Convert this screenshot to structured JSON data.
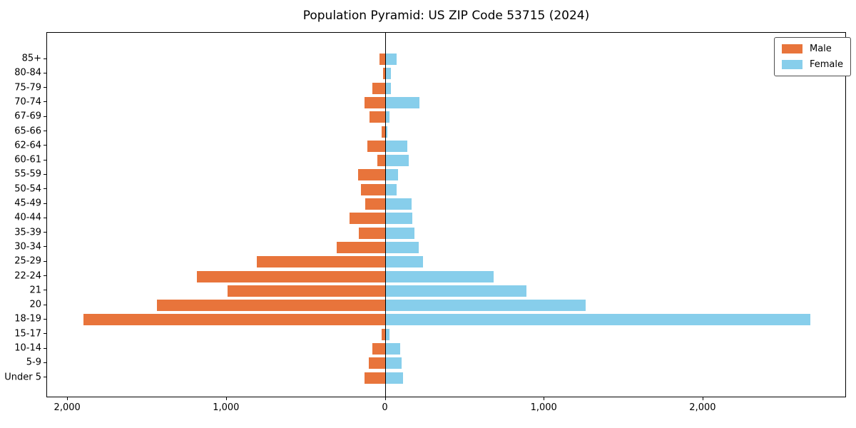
{
  "title": "Population Pyramid: US ZIP Code 53715 (2024)",
  "legend": {
    "items": [
      {
        "label": "Male",
        "color": "#E8743B"
      },
      {
        "label": "Female",
        "color": "#87CEEB"
      }
    ]
  },
  "colors": {
    "male": "#E8743B",
    "female": "#87CEEB",
    "axis": "#000000",
    "background": "#ffffff"
  },
  "x_axis": {
    "tick_values": [
      -2000,
      -1000,
      0,
      1000,
      2000
    ],
    "tick_labels": [
      "2,000",
      "1,000",
      "0",
      "1,000",
      "2,000"
    ]
  },
  "chart_data": {
    "type": "bar",
    "subtype": "population-pyramid-horizontal",
    "title": "Population Pyramid: US ZIP Code 53715 (2024)",
    "xlabel": "",
    "ylabel": "",
    "grid": false,
    "legend_position": "upper right",
    "xlim": [
      -2131,
      2903
    ],
    "categories_top_to_bottom": [
      "85+",
      "80-84",
      "75-79",
      "70-74",
      "67-69",
      "65-66",
      "62-64",
      "60-61",
      "55-59",
      "50-54",
      "45-49",
      "40-44",
      "35-39",
      "30-34",
      "25-29",
      "22-24",
      "21",
      "20",
      "18-19",
      "15-17",
      "10-14",
      "5-9",
      "Under 5"
    ],
    "series": [
      {
        "name": "Male",
        "side": "left",
        "color": "#E8743B",
        "values": [
          38,
          18,
          82,
          132,
          100,
          25,
          115,
          52,
          172,
          154,
          126,
          225,
          168,
          307,
          812,
          1190,
          993,
          1438,
          1902,
          27,
          85,
          105,
          132
        ]
      },
      {
        "name": "Female",
        "side": "right",
        "color": "#87CEEB",
        "values": [
          70,
          34,
          34,
          213,
          26,
          13,
          139,
          145,
          79,
          70,
          166,
          170,
          180,
          210,
          235,
          682,
          887,
          1258,
          2674,
          25,
          94,
          100,
          112
        ]
      }
    ]
  }
}
